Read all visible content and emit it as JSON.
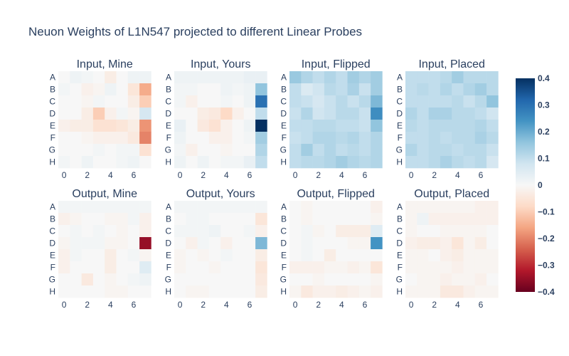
{
  "chart_data": {
    "type": "heatmap",
    "title": "Neuon Weights of L1N547 projected to different Linear Probes",
    "row_labels": [
      "A",
      "B",
      "C",
      "D",
      "E",
      "F",
      "G",
      "H"
    ],
    "col_ticks": [
      "0",
      "2",
      "4",
      "6"
    ],
    "col_tick_values": [
      0,
      2,
      4,
      6
    ],
    "colorscale": "RdBu",
    "zrange": [
      -0.4,
      0.4
    ],
    "colorbar_ticks": [
      "0.4",
      "0.3",
      "0.2",
      "0.1",
      "0",
      "−0.1",
      "−0.2",
      "−0.3",
      "−0.4"
    ],
    "colorbar_tick_values": [
      0.4,
      0.3,
      0.2,
      0.1,
      0,
      -0.1,
      -0.2,
      -0.3,
      -0.4
    ],
    "panels": [
      {
        "title": "Input, Mine",
        "z": [
          [
            0.0,
            0.02,
            0.01,
            0.0,
            -0.03,
            0.0,
            0.02,
            0.02
          ],
          [
            0.01,
            0.0,
            -0.02,
            -0.01,
            0.02,
            0.0,
            -0.05,
            -0.15
          ],
          [
            0.0,
            0.0,
            -0.01,
            0.01,
            0.0,
            0.0,
            -0.03,
            -0.1
          ],
          [
            0.0,
            0.0,
            -0.03,
            -0.1,
            -0.02,
            0.01,
            -0.01,
            0.07
          ],
          [
            -0.02,
            -0.03,
            -0.03,
            -0.06,
            -0.06,
            -0.05,
            -0.03,
            -0.18
          ],
          [
            0.0,
            0.0,
            -0.01,
            -0.02,
            -0.02,
            -0.02,
            -0.04,
            -0.2
          ],
          [
            0.0,
            0.0,
            0.0,
            0.01,
            0.0,
            0.01,
            0.01,
            -0.06
          ],
          [
            0.01,
            0.0,
            0.02,
            0.0,
            0.0,
            0.01,
            0.02,
            0.0
          ]
        ]
      },
      {
        "title": "Input, Yours",
        "z": [
          [
            0.02,
            0.02,
            0.02,
            0.02,
            0.02,
            0.02,
            0.03,
            0.03
          ],
          [
            0.01,
            0.01,
            0.0,
            0.0,
            0.02,
            0.01,
            0.02,
            0.16
          ],
          [
            0.01,
            -0.02,
            0.0,
            0.0,
            0.01,
            0.0,
            0.02,
            0.3
          ],
          [
            0.0,
            0.0,
            -0.03,
            -0.04,
            -0.08,
            -0.02,
            0.0,
            0.1
          ],
          [
            0.03,
            0.0,
            -0.04,
            -0.06,
            -0.02,
            0.0,
            0.02,
            0.4
          ],
          [
            0.02,
            0.0,
            0.0,
            -0.02,
            -0.02,
            0.0,
            0.01,
            0.14
          ],
          [
            0.01,
            -0.02,
            0.0,
            0.0,
            -0.01,
            0.0,
            0.0,
            0.12
          ],
          [
            0.02,
            0.0,
            0.02,
            0.0,
            0.01,
            0.01,
            0.03,
            0.1
          ]
        ]
      },
      {
        "title": "Input, Flipped",
        "z": [
          [
            0.15,
            0.12,
            0.1,
            0.12,
            0.1,
            0.14,
            0.12,
            0.14
          ],
          [
            0.1,
            0.06,
            0.08,
            0.11,
            0.1,
            0.13,
            0.09,
            0.14
          ],
          [
            0.1,
            0.09,
            0.07,
            0.09,
            0.11,
            0.09,
            0.11,
            0.18
          ],
          [
            0.09,
            0.12,
            0.08,
            0.09,
            0.11,
            0.11,
            0.09,
            0.25
          ],
          [
            0.1,
            0.1,
            0.11,
            0.11,
            0.1,
            0.1,
            0.09,
            0.16
          ],
          [
            0.09,
            0.1,
            0.12,
            0.12,
            0.11,
            0.12,
            0.1,
            0.12
          ],
          [
            0.1,
            0.14,
            0.1,
            0.12,
            0.1,
            0.11,
            0.1,
            0.12
          ],
          [
            0.1,
            0.11,
            0.11,
            0.12,
            0.14,
            0.12,
            0.11,
            0.12
          ]
        ]
      },
      {
        "title": "Input, Placed",
        "z": [
          [
            0.1,
            0.1,
            0.1,
            0.11,
            0.14,
            0.11,
            0.11,
            0.11
          ],
          [
            0.1,
            0.11,
            0.1,
            0.12,
            0.1,
            0.12,
            0.14,
            0.11
          ],
          [
            0.1,
            0.1,
            0.1,
            0.1,
            0.11,
            0.09,
            0.11,
            0.16
          ],
          [
            0.12,
            0.1,
            0.13,
            0.13,
            0.11,
            0.11,
            0.1,
            0.08
          ],
          [
            0.11,
            0.1,
            0.11,
            0.11,
            0.11,
            0.11,
            0.12,
            0.1
          ],
          [
            0.1,
            0.1,
            0.11,
            0.1,
            0.11,
            0.11,
            0.13,
            0.11
          ],
          [
            0.12,
            0.1,
            0.11,
            0.11,
            0.1,
            0.11,
            0.11,
            0.09
          ],
          [
            0.1,
            0.1,
            0.11,
            0.13,
            0.11,
            0.1,
            0.11,
            0.07
          ]
        ]
      },
      {
        "title": "Output, Mine",
        "z": [
          [
            0.01,
            0.01,
            0.01,
            0.01,
            0.01,
            0.01,
            0.01,
            0.01
          ],
          [
            -0.02,
            -0.01,
            0.0,
            0.0,
            -0.01,
            -0.01,
            0.01,
            -0.02
          ],
          [
            0.0,
            0.01,
            0.0,
            0.01,
            0.0,
            -0.01,
            0.0,
            -0.02
          ],
          [
            -0.01,
            0.01,
            0.01,
            0.01,
            -0.01,
            -0.01,
            0.0,
            -0.35
          ],
          [
            -0.02,
            0.01,
            0.0,
            0.0,
            -0.03,
            0.0,
            0.01,
            -0.01
          ],
          [
            -0.02,
            0.0,
            0.0,
            0.0,
            -0.03,
            0.0,
            0.0,
            0.05
          ],
          [
            0.0,
            0.0,
            -0.04,
            0.0,
            -0.01,
            0.0,
            0.01,
            0.02
          ],
          [
            0.0,
            0.0,
            0.0,
            0.0,
            -0.01,
            -0.01,
            0.0,
            0.0
          ]
        ]
      },
      {
        "title": "Output, Yours",
        "z": [
          [
            0.01,
            0.01,
            0.01,
            0.01,
            0.01,
            0.01,
            0.01,
            0.01
          ],
          [
            0.0,
            0.01,
            0.01,
            0.0,
            0.0,
            0.0,
            0.0,
            -0.05
          ],
          [
            0.01,
            0.01,
            0.01,
            0.02,
            0.0,
            0.0,
            0.01,
            -0.02
          ],
          [
            0.0,
            -0.02,
            0.01,
            0.0,
            -0.02,
            0.0,
            0.0,
            0.18
          ],
          [
            -0.01,
            0.0,
            -0.01,
            0.0,
            0.01,
            0.0,
            0.0,
            -0.03
          ],
          [
            -0.01,
            0.0,
            0.0,
            -0.01,
            0.0,
            0.0,
            0.0,
            -0.05
          ],
          [
            0.0,
            0.0,
            0.0,
            0.0,
            0.0,
            0.0,
            0.0,
            -0.04
          ],
          [
            0.0,
            -0.01,
            -0.01,
            0.0,
            0.0,
            0.0,
            0.0,
            -0.03
          ]
        ]
      },
      {
        "title": "Output, Flipped",
        "z": [
          [
            0.0,
            -0.01,
            0.0,
            0.0,
            0.0,
            0.0,
            0.0,
            -0.02
          ],
          [
            0.0,
            -0.01,
            0.0,
            0.0,
            0.0,
            0.0,
            0.0,
            -0.01
          ],
          [
            0.0,
            0.01,
            -0.01,
            0.0,
            -0.03,
            -0.03,
            -0.03,
            0.05
          ],
          [
            0.0,
            0.01,
            0.0,
            0.0,
            0.0,
            -0.01,
            -0.01,
            0.24
          ],
          [
            0.0,
            0.01,
            0.0,
            -0.03,
            0.0,
            0.0,
            0.0,
            0.0
          ],
          [
            -0.02,
            -0.02,
            -0.02,
            -0.01,
            -0.01,
            -0.02,
            -0.01,
            -0.05
          ],
          [
            0.0,
            0.0,
            -0.01,
            0.0,
            0.0,
            0.0,
            0.0,
            -0.01
          ],
          [
            -0.01,
            -0.04,
            -0.02,
            -0.02,
            -0.03,
            -0.02,
            -0.01,
            -0.02
          ]
        ]
      },
      {
        "title": "Output, Placed",
        "z": [
          [
            -0.01,
            -0.01,
            -0.01,
            -0.01,
            -0.01,
            -0.01,
            -0.02,
            -0.02
          ],
          [
            -0.01,
            0.02,
            -0.02,
            -0.02,
            -0.02,
            -0.02,
            -0.02,
            -0.02
          ],
          [
            -0.01,
            0.0,
            0.0,
            -0.01,
            -0.01,
            -0.01,
            -0.01,
            0.0
          ],
          [
            -0.02,
            -0.03,
            -0.03,
            -0.02,
            -0.05,
            -0.01,
            -0.03,
            0.0
          ],
          [
            -0.01,
            -0.01,
            0.0,
            -0.02,
            -0.03,
            -0.01,
            -0.01,
            -0.01
          ],
          [
            -0.01,
            -0.01,
            -0.01,
            -0.01,
            -0.02,
            -0.01,
            -0.01,
            -0.01
          ],
          [
            0.0,
            -0.01,
            -0.01,
            -0.02,
            -0.01,
            -0.01,
            -0.02,
            0.0
          ],
          [
            -0.01,
            -0.01,
            -0.01,
            -0.04,
            -0.04,
            -0.02,
            -0.01,
            -0.01
          ]
        ]
      }
    ]
  }
}
